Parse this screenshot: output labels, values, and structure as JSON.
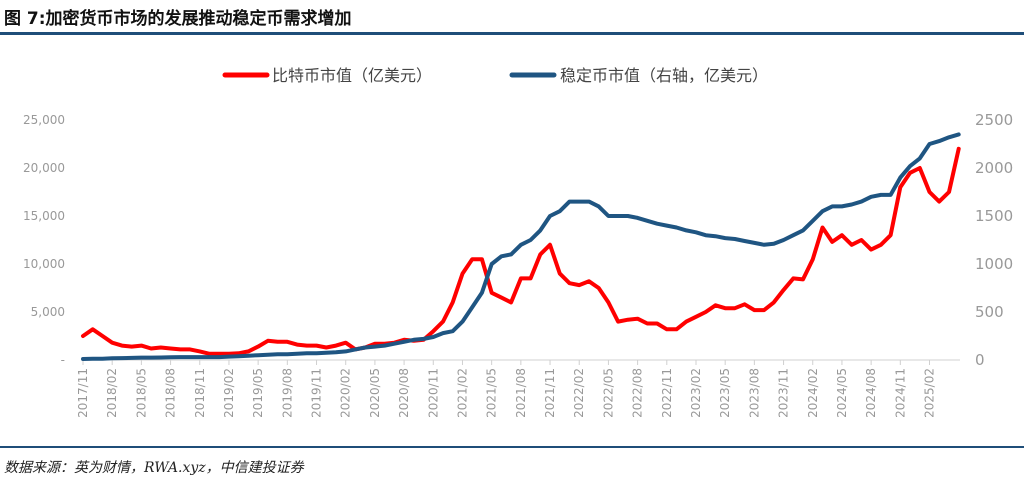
{
  "title": "图 7:加密货币市场的发展推动稳定币需求增加",
  "source": "数据来源：英为财情，RWA.xyz，中信建投证券",
  "chart_data": {
    "type": "line",
    "title": "图 7:加密货币市场的发展推动稳定币需求增加",
    "legend_position": "top",
    "grid": false,
    "y_left": {
      "range": [
        0,
        25000
      ],
      "ticks": [
        "-",
        "5,000",
        "10,000",
        "15,000",
        "20,000",
        "25,000"
      ]
    },
    "y_right": {
      "range": [
        0,
        2500
      ],
      "ticks": [
        "0",
        "500",
        "1000",
        "1500",
        "2000",
        "2500"
      ]
    },
    "x_tick_labels": [
      "2017/11",
      "2018/02",
      "2018/05",
      "2018/08",
      "2018/11",
      "2019/02",
      "2019/05",
      "2019/08",
      "2019/11",
      "2020/02",
      "2020/05",
      "2020/08",
      "2020/11",
      "2021/02",
      "2021/05",
      "2021/08",
      "2021/11",
      "2022/02",
      "2022/05",
      "2022/08",
      "2022/11",
      "2023/02",
      "2023/05",
      "2023/08",
      "2023/11",
      "2024/02",
      "2024/05",
      "2024/08",
      "2024/11",
      "2025/02"
    ],
    "x": [
      "2017/11",
      "2017/12",
      "2018/01",
      "2018/02",
      "2018/03",
      "2018/04",
      "2018/05",
      "2018/06",
      "2018/07",
      "2018/08",
      "2018/09",
      "2018/10",
      "2018/11",
      "2018/12",
      "2019/01",
      "2019/02",
      "2019/03",
      "2019/04",
      "2019/05",
      "2019/06",
      "2019/07",
      "2019/08",
      "2019/09",
      "2019/10",
      "2019/11",
      "2019/12",
      "2020/01",
      "2020/02",
      "2020/03",
      "2020/04",
      "2020/05",
      "2020/06",
      "2020/07",
      "2020/08",
      "2020/09",
      "2020/10",
      "2020/11",
      "2020/12",
      "2021/01",
      "2021/02",
      "2021/03",
      "2021/04",
      "2021/05",
      "2021/06",
      "2021/07",
      "2021/08",
      "2021/09",
      "2021/10",
      "2021/11",
      "2021/12",
      "2022/01",
      "2022/02",
      "2022/03",
      "2022/04",
      "2022/05",
      "2022/06",
      "2022/07",
      "2022/08",
      "2022/09",
      "2022/10",
      "2022/11",
      "2022/12",
      "2023/01",
      "2023/02",
      "2023/03",
      "2023/04",
      "2023/05",
      "2023/06",
      "2023/07",
      "2023/08",
      "2023/09",
      "2023/10",
      "2023/11",
      "2023/12",
      "2024/01",
      "2024/02",
      "2024/03",
      "2024/04",
      "2024/05",
      "2024/06",
      "2024/07",
      "2024/08",
      "2024/09",
      "2024/10",
      "2024/11",
      "2024/12",
      "2025/01",
      "2025/02",
      "2025/03",
      "2025/04",
      "2025/05"
    ],
    "series": [
      {
        "name": "比特币市值（亿美元）",
        "axis": "left",
        "color": "#ff0000",
        "values": [
          2500,
          3200,
          2500,
          1800,
          1500,
          1400,
          1500,
          1200,
          1300,
          1200,
          1100,
          1100,
          900,
          650,
          650,
          650,
          700,
          900,
          1400,
          2000,
          1900,
          1900,
          1600,
          1500,
          1500,
          1300,
          1500,
          1800,
          1100,
          1300,
          1700,
          1700,
          1800,
          2100,
          2000,
          2100,
          3000,
          4000,
          6000,
          9000,
          10500,
          10500,
          7000,
          6500,
          6000,
          8500,
          8500,
          11000,
          12000,
          9000,
          8000,
          7800,
          8200,
          7500,
          6000,
          4000,
          4200,
          4300,
          3800,
          3800,
          3200,
          3200,
          4000,
          4500,
          5000,
          5700,
          5400,
          5400,
          5800,
          5200,
          5200,
          6000,
          7300,
          8500,
          8400,
          10500,
          13800,
          12300,
          13000,
          12000,
          12500,
          11500,
          12000,
          13000,
          18000,
          19500,
          20000,
          17500,
          16500,
          17500,
          22000
        ]
      },
      {
        "name": "稳定币市值（右轴，亿美元）",
        "axis": "right",
        "color": "#1f5582",
        "values": [
          10,
          12,
          14,
          18,
          20,
          22,
          25,
          25,
          26,
          28,
          30,
          30,
          30,
          30,
          30,
          35,
          40,
          45,
          50,
          55,
          60,
          60,
          65,
          70,
          70,
          75,
          80,
          90,
          110,
          130,
          140,
          150,
          170,
          190,
          210,
          220,
          240,
          280,
          300,
          400,
          550,
          700,
          1000,
          1080,
          1100,
          1200,
          1250,
          1350,
          1500,
          1550,
          1650,
          1650,
          1650,
          1600,
          1500,
          1500,
          1500,
          1480,
          1450,
          1420,
          1400,
          1380,
          1350,
          1330,
          1300,
          1290,
          1270,
          1260,
          1240,
          1220,
          1200,
          1210,
          1250,
          1300,
          1350,
          1450,
          1550,
          1600,
          1600,
          1620,
          1650,
          1700,
          1720,
          1720,
          1900,
          2020,
          2100,
          2250,
          2280,
          2320,
          2350
        ]
      }
    ]
  }
}
